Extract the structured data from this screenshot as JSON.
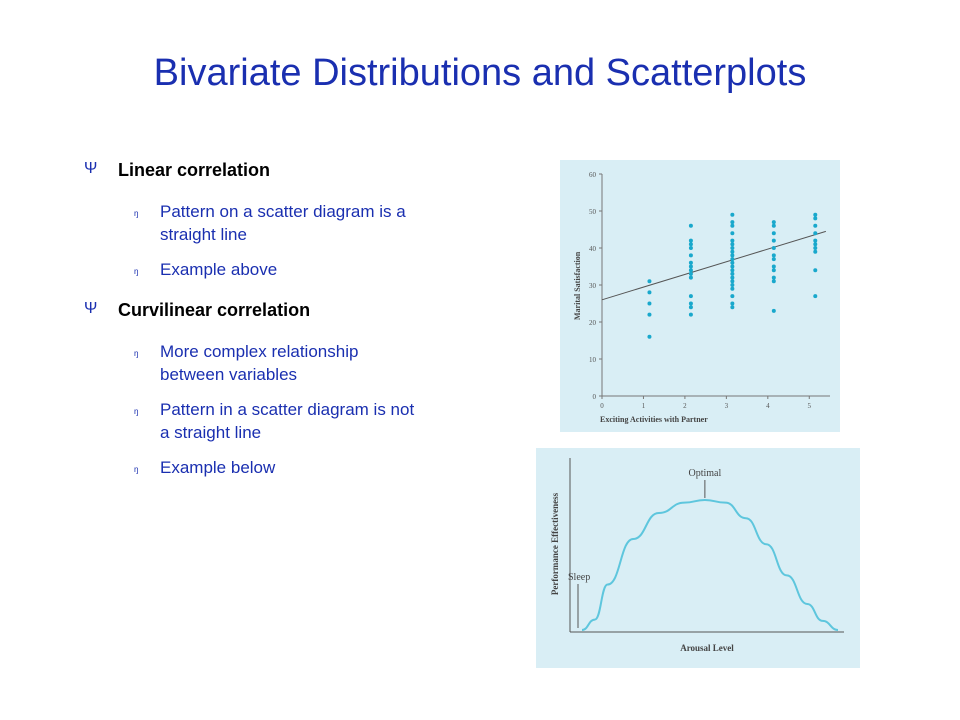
{
  "slide": {
    "title": "Bivariate Distributions and Scatterplots"
  },
  "bullets": [
    {
      "marker": "Ψ",
      "text": "Linear correlation",
      "sub": [
        {
          "marker": "ᵑ",
          "lines": [
            "Pattern on a scatter diagram is a",
            "straight line"
          ]
        },
        {
          "marker": "ᵑ",
          "lines": [
            "Example above"
          ]
        }
      ]
    },
    {
      "marker": "Ψ",
      "text": "Curvilinear correlation",
      "sub": [
        {
          "marker": "ᵑ",
          "lines": [
            "More complex relationship",
            "between variables"
          ]
        },
        {
          "marker": "ᵑ",
          "lines": [
            "Pattern in a scatter diagram is not",
            "a straight line"
          ]
        },
        {
          "marker": "ᵑ",
          "lines": [
            "Example below"
          ]
        }
      ]
    }
  ],
  "colors": {
    "title": "#1a2fb0",
    "panel": "#d9eef5",
    "points": "#19a8cc",
    "curve": "#5ec6dd"
  },
  "chart_data": [
    {
      "type": "scatter",
      "title": "",
      "xlabel": "Exciting Activities with Partner",
      "ylabel": "Marital Satisfaction",
      "xlim": [
        0,
        5.5
      ],
      "ylim": [
        0,
        60
      ],
      "x_ticks": [
        "0",
        "1",
        "2",
        "3",
        "4",
        "5"
      ],
      "y_ticks": [
        "0",
        "10",
        "20",
        "30",
        "40",
        "50",
        "60"
      ],
      "points": [
        [
          1,
          31
        ],
        [
          1,
          28
        ],
        [
          1,
          25
        ],
        [
          1,
          22
        ],
        [
          1,
          16
        ],
        [
          2,
          46
        ],
        [
          2,
          42
        ],
        [
          2,
          41
        ],
        [
          2,
          40
        ],
        [
          2,
          38
        ],
        [
          2,
          36
        ],
        [
          2,
          35
        ],
        [
          2,
          34
        ],
        [
          2,
          33
        ],
        [
          2,
          32
        ],
        [
          2,
          27
        ],
        [
          2,
          25
        ],
        [
          2,
          24
        ],
        [
          2,
          22
        ],
        [
          3,
          49
        ],
        [
          3,
          47
        ],
        [
          3,
          46
        ],
        [
          3,
          44
        ],
        [
          3,
          42
        ],
        [
          3,
          41
        ],
        [
          3,
          40
        ],
        [
          3,
          39
        ],
        [
          3,
          38
        ],
        [
          3,
          37
        ],
        [
          3,
          36
        ],
        [
          3,
          35
        ],
        [
          3,
          34
        ],
        [
          3,
          33
        ],
        [
          3,
          32
        ],
        [
          3,
          31
        ],
        [
          3,
          30
        ],
        [
          3,
          29
        ],
        [
          3,
          27
        ],
        [
          3,
          25
        ],
        [
          3,
          24
        ],
        [
          4,
          47
        ],
        [
          4,
          46
        ],
        [
          4,
          44
        ],
        [
          4,
          42
        ],
        [
          4,
          40
        ],
        [
          4,
          38
        ],
        [
          4,
          37
        ],
        [
          4,
          35
        ],
        [
          4,
          34
        ],
        [
          4,
          32
        ],
        [
          4,
          31
        ],
        [
          4,
          23
        ],
        [
          5,
          49
        ],
        [
          5,
          48
        ],
        [
          5,
          46
        ],
        [
          5,
          44
        ],
        [
          5,
          42
        ],
        [
          5,
          41
        ],
        [
          5,
          40
        ],
        [
          5,
          39
        ],
        [
          5,
          34
        ],
        [
          5,
          27
        ]
      ],
      "trend_line": {
        "x": [
          0,
          5.4
        ],
        "y": [
          26,
          44.5
        ]
      },
      "grid": false
    },
    {
      "type": "line",
      "title": "",
      "xlabel": "Arousal Level",
      "ylabel": "Performance Effectiveness",
      "annotations": [
        "Optimal",
        "Sleep"
      ],
      "curve": {
        "x": [
          0,
          0.05,
          0.1,
          0.2,
          0.3,
          0.4,
          0.48,
          0.56,
          0.64,
          0.72,
          0.8,
          0.88,
          0.94,
          1.0
        ],
        "y": [
          0,
          0.08,
          0.35,
          0.7,
          0.9,
          0.98,
          1.0,
          0.98,
          0.86,
          0.66,
          0.42,
          0.2,
          0.07,
          0.0
        ]
      },
      "grid": false
    }
  ]
}
